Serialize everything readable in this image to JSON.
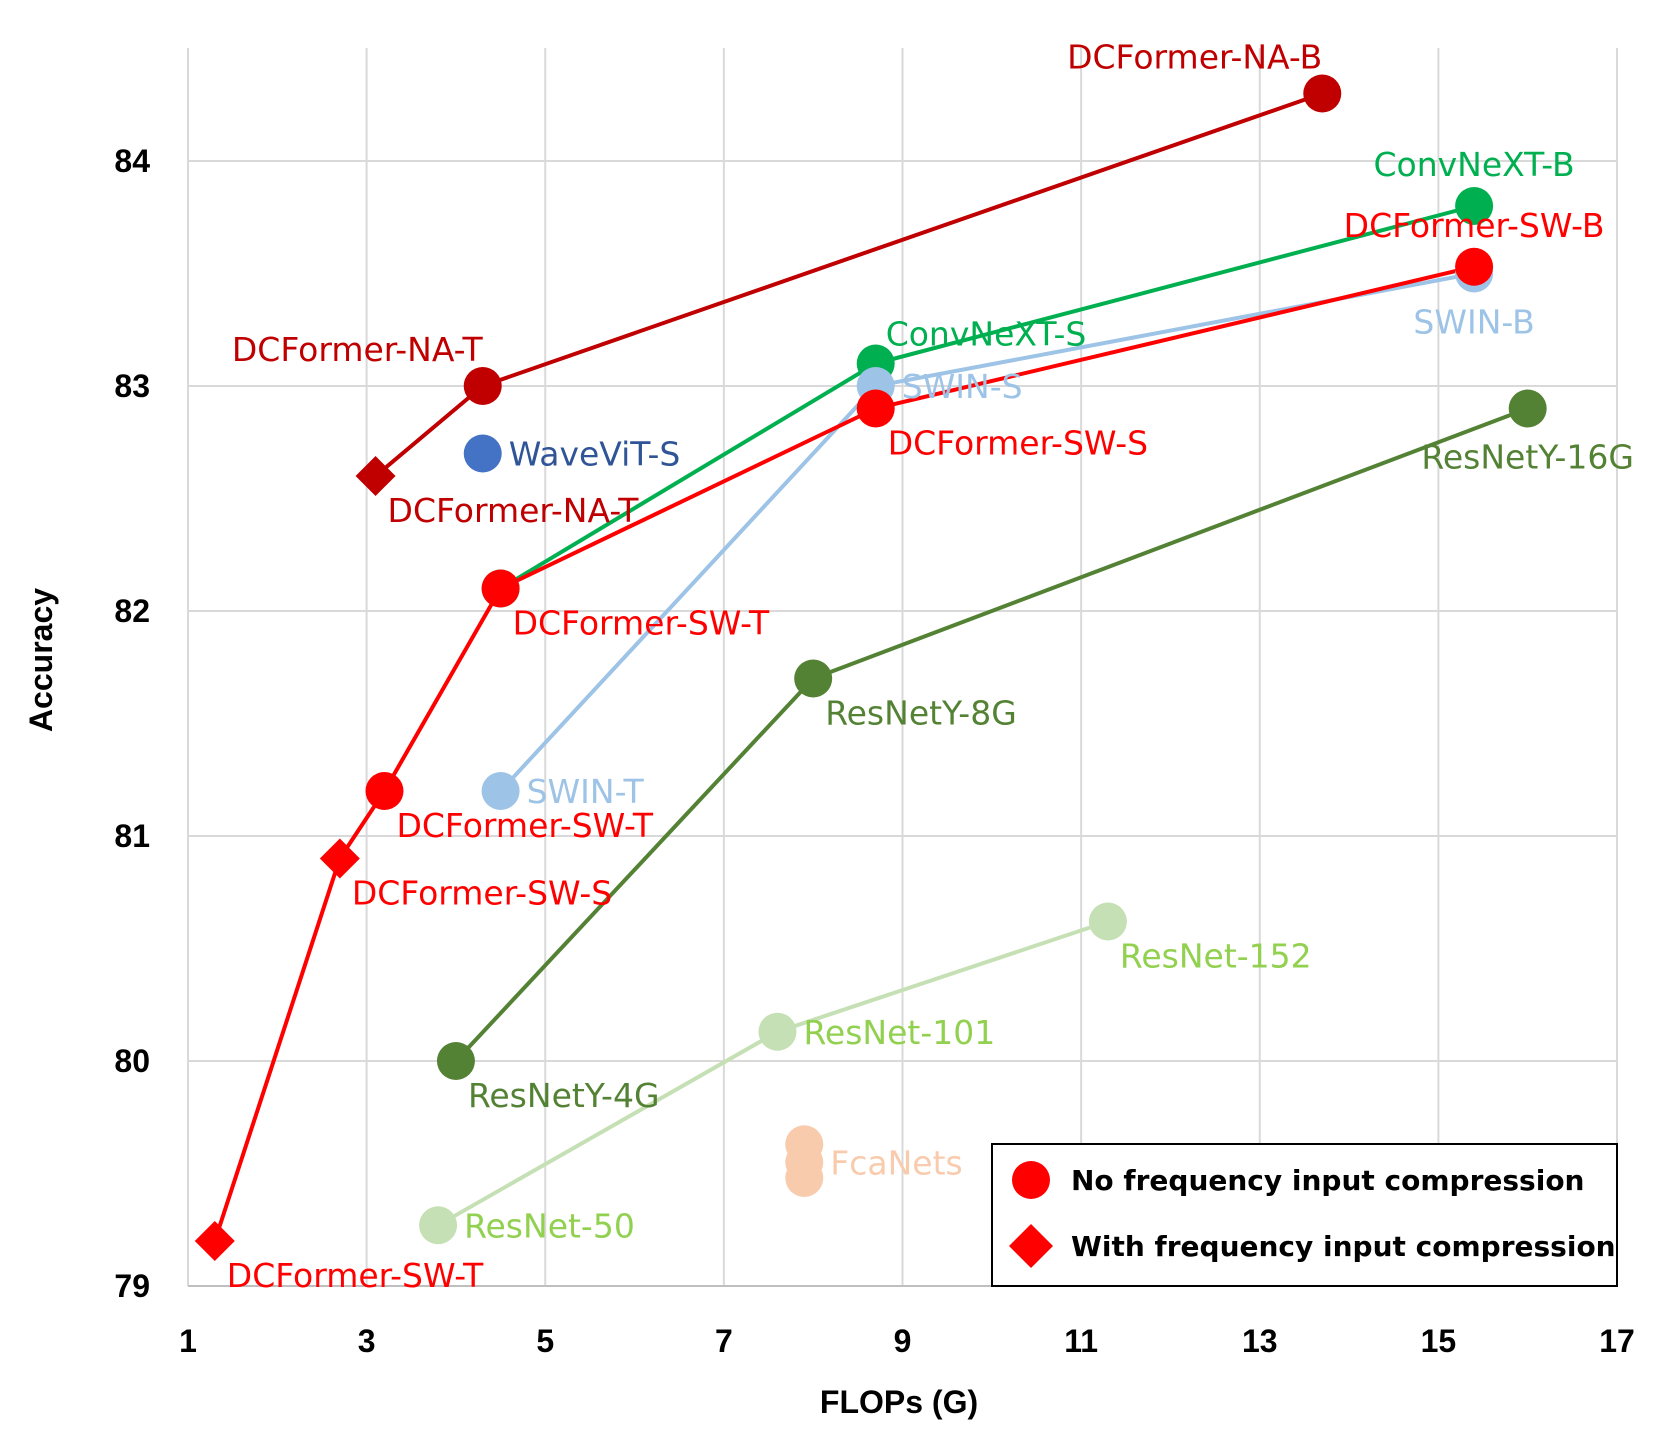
{
  "chart_data": {
    "type": "scatter",
    "xlabel": "FLOPs (G)",
    "ylabel": "Accuracy",
    "xlim": [
      1,
      17
    ],
    "ylim": [
      79,
      84.5
    ],
    "xticks": [
      1,
      3,
      5,
      7,
      9,
      11,
      13,
      15,
      17
    ],
    "yticks": [
      79,
      80,
      81,
      82,
      83,
      84
    ],
    "grid": true,
    "legend_position": "bottom-right",
    "legend": [
      {
        "label": "No frequency input compression",
        "marker": "circle",
        "color": "#ff0000"
      },
      {
        "label": "With frequency input compression",
        "marker": "diamond",
        "color": "#ff0000"
      }
    ],
    "series": [
      {
        "color": "#c00000",
        "line": true,
        "points": [
          {
            "x": 3.1,
            "y": 82.6,
            "marker": "diamond",
            "label": "DCFormer-NA-T",
            "label_pos": "below-right"
          },
          {
            "x": 4.3,
            "y": 83.0,
            "marker": "circle",
            "label": "DCFormer-NA-T",
            "label_pos": "above-left"
          },
          {
            "x": 13.7,
            "y": 84.3,
            "marker": "circle",
            "label": "DCFormer-NA-B",
            "label_pos": "above-left"
          }
        ]
      },
      {
        "color": "#00b050",
        "line": true,
        "points": [
          {
            "x": 4.5,
            "y": 82.1,
            "marker": "circle",
            "label": "",
            "label_pos": "none"
          },
          {
            "x": 8.7,
            "y": 83.1,
            "marker": "circle",
            "label": "ConvNeXT-S",
            "label_pos": "above-right"
          },
          {
            "x": 15.4,
            "y": 83.8,
            "marker": "circle",
            "label": "ConvNeXT-B",
            "label_pos": "above"
          }
        ]
      },
      {
        "color": "#9dc3e6",
        "line": true,
        "points": [
          {
            "x": 4.5,
            "y": 81.2,
            "marker": "circle",
            "label": "SWIN-T",
            "label_pos": "right"
          },
          {
            "x": 8.7,
            "y": 83.0,
            "marker": "circle",
            "label": "SWIN-S",
            "label_pos": "right"
          },
          {
            "x": 15.4,
            "y": 83.5,
            "marker": "circle",
            "label": "SWIN-B",
            "label_pos": "below"
          }
        ]
      },
      {
        "color": "#ff0000",
        "line": true,
        "points": [
          {
            "x": 1.3,
            "y": 79.2,
            "marker": "diamond",
            "label": "DCFormer-SW-T",
            "label_pos": "below-right"
          },
          {
            "x": 2.7,
            "y": 80.9,
            "marker": "diamond",
            "label": "DCFormer-SW-S",
            "label_pos": "below-right"
          },
          {
            "x": 3.2,
            "y": 81.2,
            "marker": "circle",
            "label": "DCFormer-SW-T",
            "label_pos": "below-right"
          },
          {
            "x": 4.5,
            "y": 82.1,
            "marker": "circle",
            "label": "DCFormer-SW-T",
            "label_pos": "below-right"
          },
          {
            "x": 8.7,
            "y": 82.9,
            "marker": "circle",
            "label": "DCFormer-SW-S",
            "label_pos": "below-right"
          },
          {
            "x": 15.4,
            "y": 83.53,
            "marker": "circle",
            "label": "DCFormer-SW-B",
            "label_pos": "above"
          }
        ]
      },
      {
        "color": "#548235",
        "line": true,
        "points": [
          {
            "x": 4.0,
            "y": 80.0,
            "marker": "circle",
            "label": "ResNetY-4G",
            "label_pos": "below-right"
          },
          {
            "x": 8.0,
            "y": 81.7,
            "marker": "circle",
            "label": "ResNetY-8G",
            "label_pos": "below-right"
          },
          {
            "x": 16.0,
            "y": 82.9,
            "marker": "circle",
            "label": "ResNetY-16G",
            "label_pos": "below"
          }
        ]
      },
      {
        "color": "#c5e0b4",
        "label_color": "#92d050",
        "line": true,
        "points": [
          {
            "x": 3.8,
            "y": 79.27,
            "marker": "circle",
            "label": "ResNet-50",
            "label_pos": "right"
          },
          {
            "x": 7.6,
            "y": 80.13,
            "marker": "circle",
            "label": "ResNet-101",
            "label_pos": "right"
          },
          {
            "x": 11.3,
            "y": 80.62,
            "marker": "circle",
            "label": "ResNet-152",
            "label_pos": "below-right"
          }
        ]
      },
      {
        "color": "#4472c4",
        "label_color": "#2f5597",
        "line": false,
        "points": [
          {
            "x": 4.3,
            "y": 82.7,
            "marker": "circle",
            "label": "WaveViT-S",
            "label_pos": "right"
          }
        ]
      },
      {
        "color": "#f8cbad",
        "line": false,
        "points": [
          {
            "x": 7.9,
            "y": 79.63,
            "marker": "circle",
            "label": "",
            "label_pos": "none"
          },
          {
            "x": 7.9,
            "y": 79.55,
            "marker": "circle",
            "label": "FcaNets",
            "label_pos": "right"
          },
          {
            "x": 7.9,
            "y": 79.48,
            "marker": "circle",
            "label": "",
            "label_pos": "none"
          }
        ]
      }
    ]
  }
}
